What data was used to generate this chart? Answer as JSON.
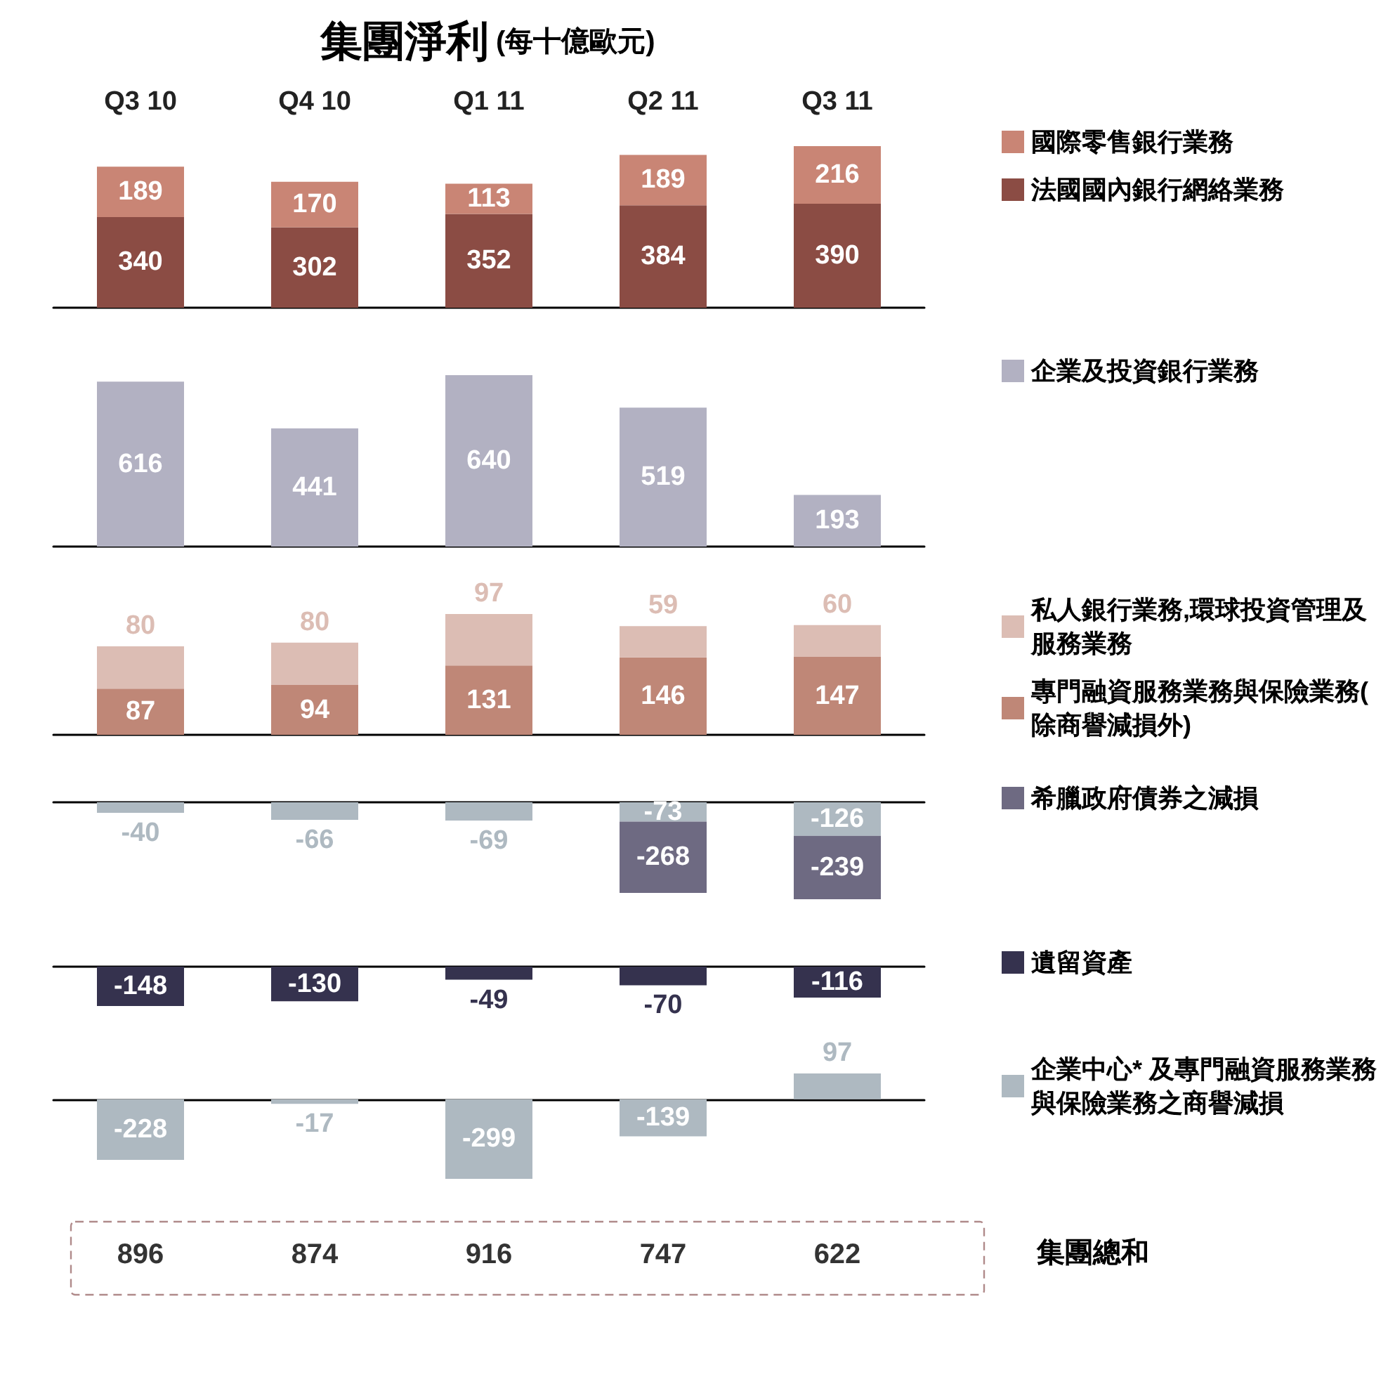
{
  "chart_data": [
    {
      "type": "bar",
      "title": "集團淨利",
      "subtitle": "(每十億歐元)",
      "categories": [
        "Q3 10",
        "Q4 10",
        "Q1 11",
        "Q2 11",
        "Q3 11"
      ],
      "stacked": true,
      "data_labels": true,
      "legend": "right",
      "tick_labels": "x",
      "series": [
        {
          "name": "法國國內銀行網絡業務",
          "color": "#8b4c44",
          "values": [
            340,
            302,
            352,
            384,
            390
          ]
        },
        {
          "name": "國際零售銀行業務",
          "color": "#c98575",
          "values": [
            189,
            170,
            113,
            189,
            216
          ]
        }
      ]
    },
    {
      "type": "bar",
      "categories": [
        null,
        null,
        null,
        null,
        null
      ],
      "data_labels": true,
      "legend": "right",
      "tick_labels": false,
      "series": [
        {
          "name": "企業及投資銀行業務",
          "color": "#b2b1c2",
          "values": [
            616,
            441,
            640,
            519,
            193
          ]
        }
      ]
    },
    {
      "type": "bar",
      "categories": [
        null,
        null,
        null,
        null,
        null
      ],
      "stacked": true,
      "data_labels": true,
      "legend": "right",
      "tick_labels": false,
      "series": [
        {
          "name": "專門融資服務業務與保險業務(除商譽減損外)",
          "color": "#bf8777",
          "values": [
            87,
            94,
            131,
            146,
            147
          ]
        },
        {
          "name": "私人銀行業務,環球投資管理及服務業務",
          "color": "#dcbdb4",
          "values": [
            80,
            80,
            97,
            59,
            60
          ]
        }
      ]
    },
    {
      "type": "bar",
      "categories": [
        null,
        null,
        null,
        null,
        null
      ],
      "stacked": true,
      "data_labels": true,
      "legend": "right",
      "tick_labels": false,
      "series": [
        {
          "color": "#aeb9c1",
          "values": [
            -40,
            -66,
            -69,
            -73,
            -126
          ]
        },
        {
          "name": "希臘政府債券之減損",
          "color": "#6e6a82",
          "values": [
            null,
            null,
            null,
            -268,
            -239
          ]
        }
      ]
    },
    {
      "type": "bar",
      "categories": [
        null,
        null,
        null,
        null,
        null
      ],
      "data_labels": true,
      "legend": "right",
      "tick_labels": false,
      "series": [
        {
          "name": "遺留資產",
          "color": "#35324e",
          "values": [
            -148,
            -130,
            -49,
            -70,
            -116
          ]
        }
      ]
    },
    {
      "type": "bar",
      "categories": [
        null,
        null,
        null,
        null,
        null
      ],
      "data_labels": true,
      "legend": "right",
      "tick_labels": false,
      "series": [
        {
          "name": "企業中心* 及專門融資服務業務與保險業務之商譽減損",
          "color": "#aeb9c1",
          "values": [
            -228,
            -17,
            -299,
            -139,
            97
          ]
        }
      ]
    },
    {
      "type": "other",
      "title": "集團總和",
      "values": [
        896,
        874,
        916,
        747,
        622
      ],
      "data_labels": true
    }
  ]
}
